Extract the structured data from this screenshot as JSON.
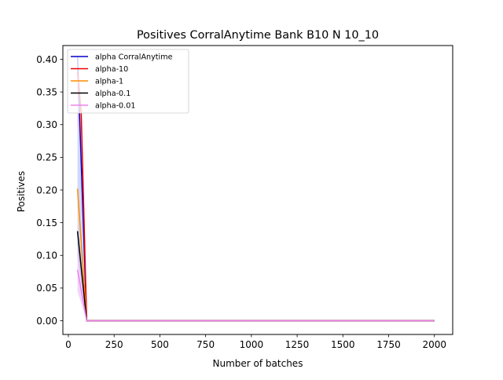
{
  "chart_data": {
    "type": "line",
    "title": "Positives CorralAnytime Bank B10 N 10_10",
    "xlabel": "Number of batches",
    "ylabel": "Positives",
    "xlim": [
      -30,
      2100
    ],
    "ylim": [
      -0.021,
      0.421
    ],
    "xticks": [
      0,
      250,
      500,
      750,
      1000,
      1250,
      1500,
      1750,
      2000
    ],
    "xtick_labels": [
      "0",
      "250",
      "500",
      "750",
      "1000",
      "1250",
      "1500",
      "1750",
      "2000"
    ],
    "yticks": [
      0.0,
      0.05,
      0.1,
      0.15,
      0.2,
      0.25,
      0.3,
      0.35,
      0.4
    ],
    "ytick_labels": [
      "0.00",
      "0.05",
      "0.10",
      "0.15",
      "0.20",
      "0.25",
      "0.30",
      "0.35",
      "0.40"
    ],
    "grid": false,
    "legend_position": "top-left",
    "series": [
      {
        "name": "alpha CorralAnytime",
        "color": "#0000cc",
        "x": [
          50,
          100,
          2000
        ],
        "y": [
          0.405,
          0.0,
          0.0
        ],
        "band": {
          "color": "#aab8ff",
          "lower": [
            0.1,
            0.0,
            0.0
          ],
          "upper": [
            0.405,
            0.0,
            0.0
          ]
        }
      },
      {
        "name": "alpha-10",
        "color": "#ee0000",
        "x": [
          50,
          70,
          100,
          2000
        ],
        "y": [
          0.38,
          0.32,
          0.0,
          0.0
        ],
        "band": {
          "color": "#ffb3b3",
          "lower": [
            0.3,
            0.26,
            0.0,
            0.0
          ],
          "upper": [
            0.4,
            0.345,
            0.0,
            0.0
          ]
        }
      },
      {
        "name": "alpha-1",
        "color": "#ff8c00",
        "x": [
          50,
          100,
          2000
        ],
        "y": [
          0.202,
          0.0,
          0.0
        ],
        "band": {
          "color": "#ffd9a6",
          "lower": [
            0.17,
            0.0,
            0.0
          ],
          "upper": [
            0.215,
            0.0,
            0.0
          ]
        }
      },
      {
        "name": "alpha-0.1",
        "color": "#000000",
        "x": [
          50,
          100,
          2000
        ],
        "y": [
          0.137,
          0.0,
          0.0
        ],
        "band": {
          "color": "#bbbbbb",
          "lower": [
            0.11,
            0.0,
            0.0
          ],
          "upper": [
            0.145,
            0.0,
            0.0
          ]
        }
      },
      {
        "name": "alpha-0.01",
        "color": "#ee82ee",
        "x": [
          50,
          100,
          2000
        ],
        "y": [
          0.078,
          0.0,
          0.0
        ],
        "band": {
          "color": "#e6b3f2",
          "lower": [
            0.045,
            0.0,
            0.0
          ],
          "upper": [
            0.12,
            0.0,
            0.0
          ]
        }
      }
    ]
  }
}
